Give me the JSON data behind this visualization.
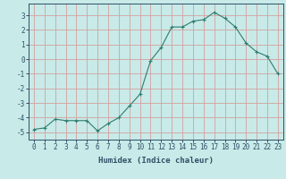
{
  "x": [
    0,
    1,
    2,
    3,
    4,
    5,
    6,
    7,
    8,
    9,
    10,
    11,
    12,
    13,
    14,
    15,
    16,
    17,
    18,
    19,
    20,
    21,
    22,
    23
  ],
  "y": [
    -4.8,
    -4.7,
    -4.1,
    -4.2,
    -4.2,
    -4.2,
    -4.9,
    -4.4,
    -4.0,
    -3.2,
    -2.4,
    -0.1,
    0.8,
    2.2,
    2.2,
    2.6,
    2.7,
    3.2,
    2.8,
    2.2,
    1.1,
    0.5,
    0.2,
    -1.0
  ],
  "line_color": "#2e7d6e",
  "marker": "+",
  "marker_size": 3,
  "bg_color": "#c8eae8",
  "grid_color": "#d4a0a0",
  "xlabel": "Humidex (Indice chaleur)",
  "xlim": [
    -0.5,
    23.5
  ],
  "ylim": [
    -5.5,
    3.8
  ],
  "yticks": [
    -5,
    -4,
    -3,
    -2,
    -1,
    0,
    1,
    2,
    3
  ],
  "xticks": [
    0,
    1,
    2,
    3,
    4,
    5,
    6,
    7,
    8,
    9,
    10,
    11,
    12,
    13,
    14,
    15,
    16,
    17,
    18,
    19,
    20,
    21,
    22,
    23
  ],
  "xtick_labels": [
    "0",
    "1",
    "2",
    "3",
    "4",
    "5",
    "6",
    "7",
    "8",
    "9",
    "10",
    "11",
    "12",
    "13",
    "14",
    "15",
    "16",
    "17",
    "18",
    "19",
    "20",
    "21",
    "22",
    "23"
  ],
  "font_color": "#2e5066",
  "label_fontsize": 6.5,
  "tick_fontsize": 5.5
}
